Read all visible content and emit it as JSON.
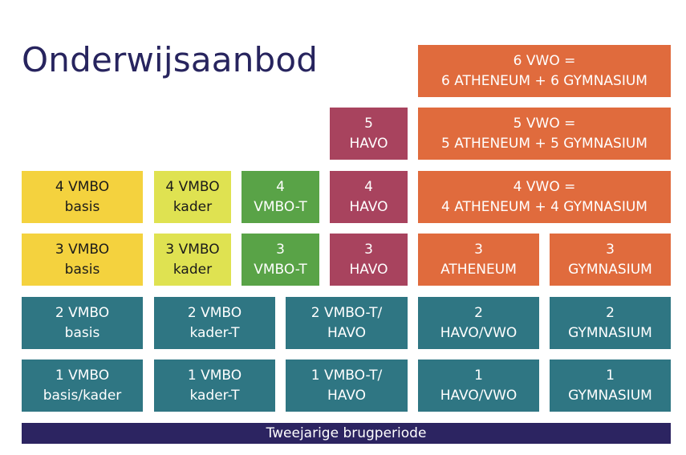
{
  "title": "Onderwijsaanbod",
  "footer": "Tweejarige brugperiode",
  "colors": {
    "vmbo_basis": "#f4d23e",
    "vmbo_kader": "#dfe251",
    "vmbo_t": "#59a347",
    "havo": "#a8435e",
    "vwo": "#e06b3d",
    "brug": "#2f7683",
    "bar": "#2c2461",
    "title": "#27245e"
  },
  "boxes": {
    "vwo6": [
      "6 VWO =",
      "6 ATHENEUM + 6 GYMNASIUM"
    ],
    "havo5": [
      "5",
      "HAVO"
    ],
    "vwo5": [
      "5 VWO =",
      "5 ATHENEUM + 5 GYMNASIUM"
    ],
    "vmbo4_basis": [
      "4 VMBO",
      "basis"
    ],
    "vmbo4_kader": [
      "4 VMBO",
      "kader"
    ],
    "vmbo4_t": [
      "4",
      "VMBO-T"
    ],
    "havo4": [
      "4",
      "HAVO"
    ],
    "vwo4": [
      "4 VWO =",
      "4 ATHENEUM + 4 GYMNASIUM"
    ],
    "vmbo3_basis": [
      "3 VMBO",
      "basis"
    ],
    "vmbo3_kader": [
      "3 VMBO",
      "kader"
    ],
    "vmbo3_t": [
      "3",
      "VMBO-T"
    ],
    "havo3": [
      "3",
      "HAVO"
    ],
    "atheneum3": [
      "3",
      "ATHENEUM"
    ],
    "gymnasium3": [
      "3",
      "GYMNASIUM"
    ],
    "y2_basis": [
      "2 VMBO",
      "basis"
    ],
    "y2_kader": [
      "2 VMBO",
      "kader-T"
    ],
    "y2_t_havo": [
      "2 VMBO-T/",
      "HAVO"
    ],
    "y2_havo_vwo": [
      "2",
      "HAVO/VWO"
    ],
    "y2_gymnasium": [
      "2",
      "GYMNASIUM"
    ],
    "y1_basis_kader": [
      "1 VMBO",
      "basis/kader"
    ],
    "y1_kader": [
      "1 VMBO",
      "kader-T"
    ],
    "y1_t_havo": [
      "1 VMBO-T/",
      "HAVO"
    ],
    "y1_havo_vwo": [
      "1",
      "HAVO/VWO"
    ],
    "y1_gymnasium": [
      "1",
      "GYMNASIUM"
    ]
  }
}
